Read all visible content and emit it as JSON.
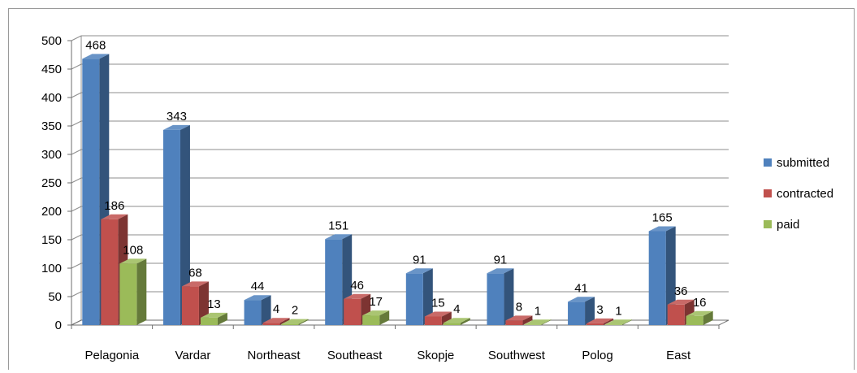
{
  "chart_data": {
    "type": "bar",
    "categories": [
      "Pelagonia",
      "Vardar",
      "Northeast",
      "Southeast",
      "Skopje",
      "Southwest",
      "Polog",
      "East"
    ],
    "series": [
      {
        "name": "submitted",
        "values": [
          468,
          343,
          44,
          151,
          91,
          91,
          41,
          165
        ],
        "color": "#4F81BD"
      },
      {
        "name": "contracted",
        "values": [
          186,
          68,
          4,
          46,
          15,
          8,
          3,
          36
        ],
        "color": "#C0504D"
      },
      {
        "name": "paid",
        "values": [
          108,
          13,
          2,
          17,
          4,
          1,
          1,
          16
        ],
        "color": "#9BBB59"
      }
    ],
    "yticks": [
      "0",
      "50",
      "100",
      "150",
      "200",
      "250",
      "300",
      "350",
      "400",
      "450",
      "500"
    ],
    "ylim": [
      0,
      500
    ],
    "grid": true,
    "legend_position": "right"
  }
}
